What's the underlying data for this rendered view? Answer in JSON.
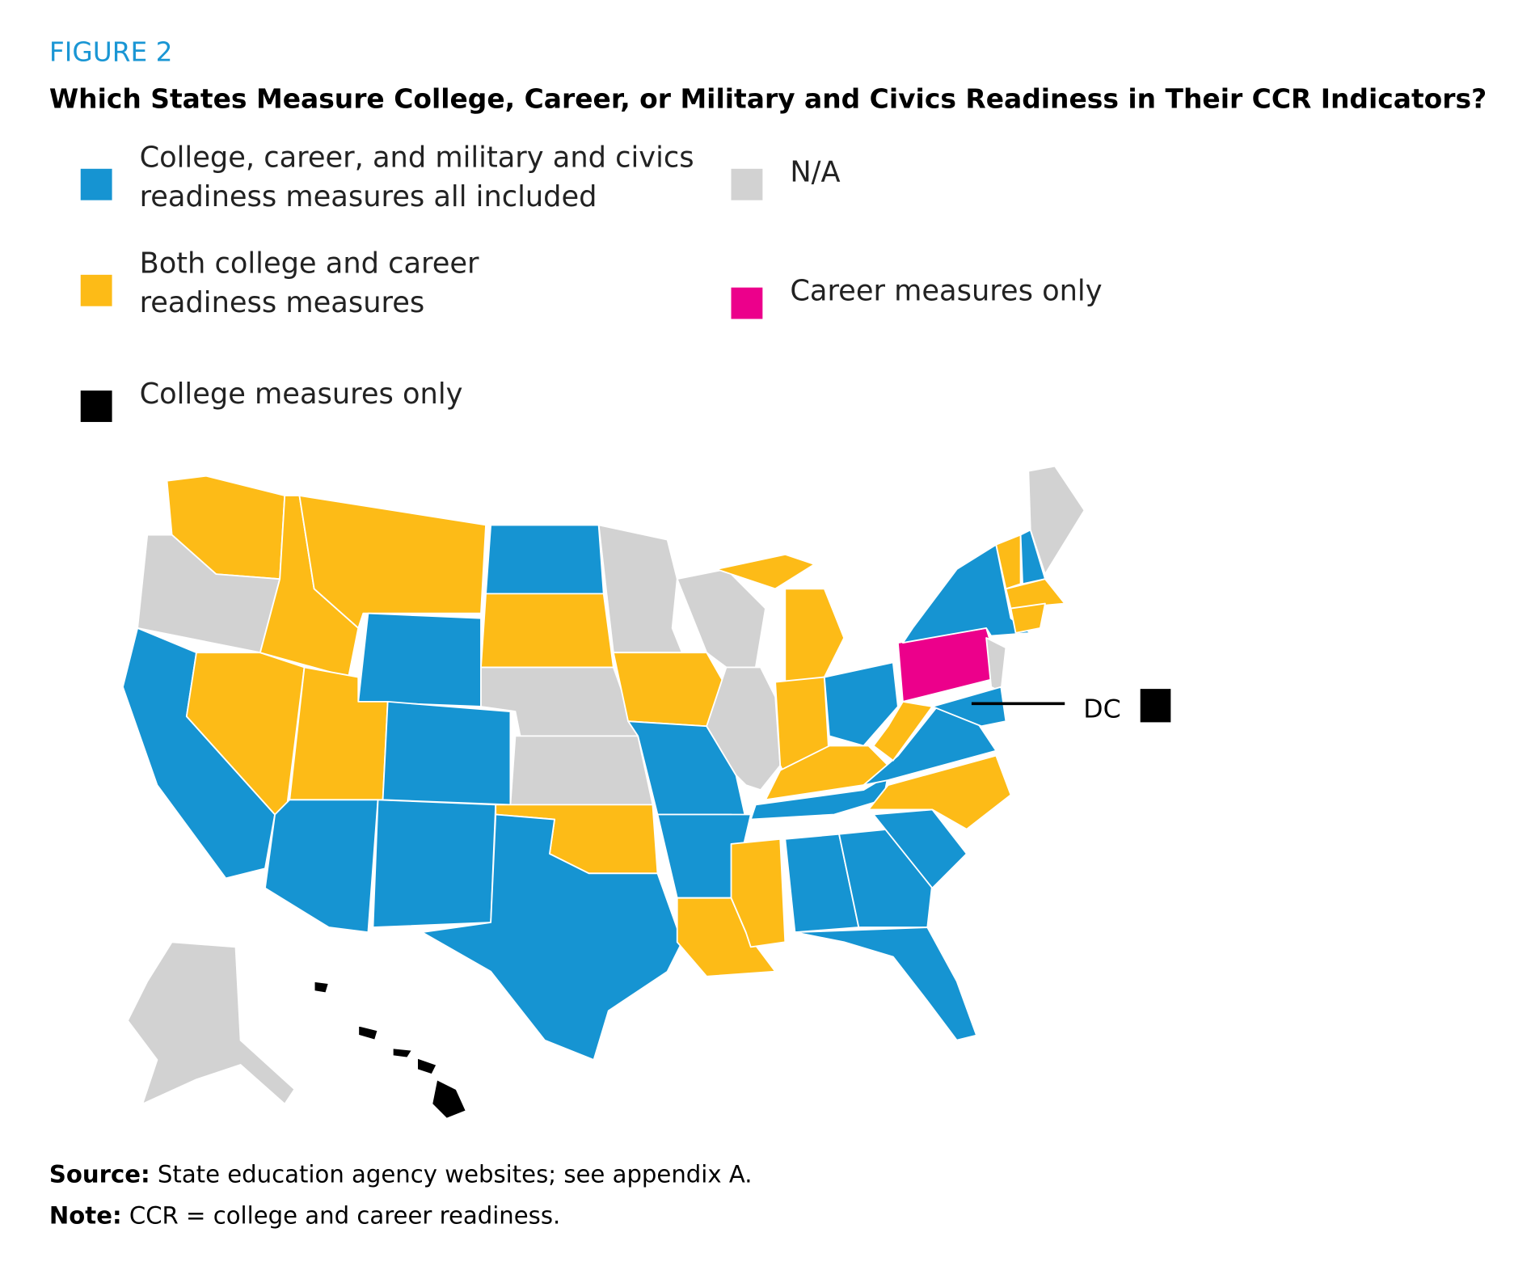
{
  "figure_label": "FIGURE 2",
  "title": "Which States Measure College, Career, or Military and Civics Readiness in Their CCR Indicators?",
  "legend": {
    "items": [
      {
        "lines": [
          "College, career, and military and civics",
          "readiness measures all included"
        ],
        "color": "#1694d2"
      },
      {
        "lines": [
          "Both college and career",
          "readiness measures"
        ],
        "color": "#fdbb17"
      },
      {
        "lines": [
          "College measures only"
        ],
        "color": "#000000"
      },
      {
        "lines": [
          "N/A"
        ],
        "color": "#d2d2d2"
      },
      {
        "lines": [
          "Career measures only"
        ],
        "color": "#ec008b"
      }
    ]
  },
  "callout": {
    "label": "DC"
  },
  "source": {
    "label": "Source:",
    "text": "State education agency websites; see appendix A."
  },
  "note": {
    "label": "Note:",
    "text": "CCR = college and career readiness."
  }
}
